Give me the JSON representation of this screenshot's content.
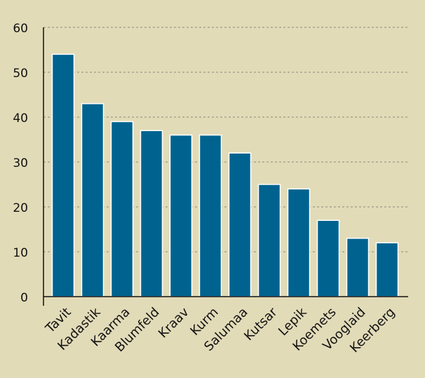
{
  "chart_data": {
    "type": "bar",
    "title": "",
    "xlabel": "",
    "ylabel": "",
    "categories": [
      "Tavit",
      "Kadastik",
      "Kaarma",
      "Blumfeld",
      "Kraav",
      "Kurm",
      "Salumaa",
      "Kutsar",
      "Lepik",
      "Koemets",
      "Vooglaid",
      "Keerberg"
    ],
    "values": [
      54,
      43,
      39,
      37,
      36,
      36,
      32,
      25,
      24,
      17,
      13,
      12
    ],
    "ylim": [
      0,
      60
    ],
    "yticks": [
      0,
      10,
      20,
      30,
      40,
      50,
      60
    ],
    "grid": "horizontal dashed",
    "colors": {
      "bar": "#00638f",
      "bar_edge": "#ffffff",
      "background": "#e2dbb8",
      "grid": "#8a8a7a",
      "axis": "#111111"
    }
  }
}
